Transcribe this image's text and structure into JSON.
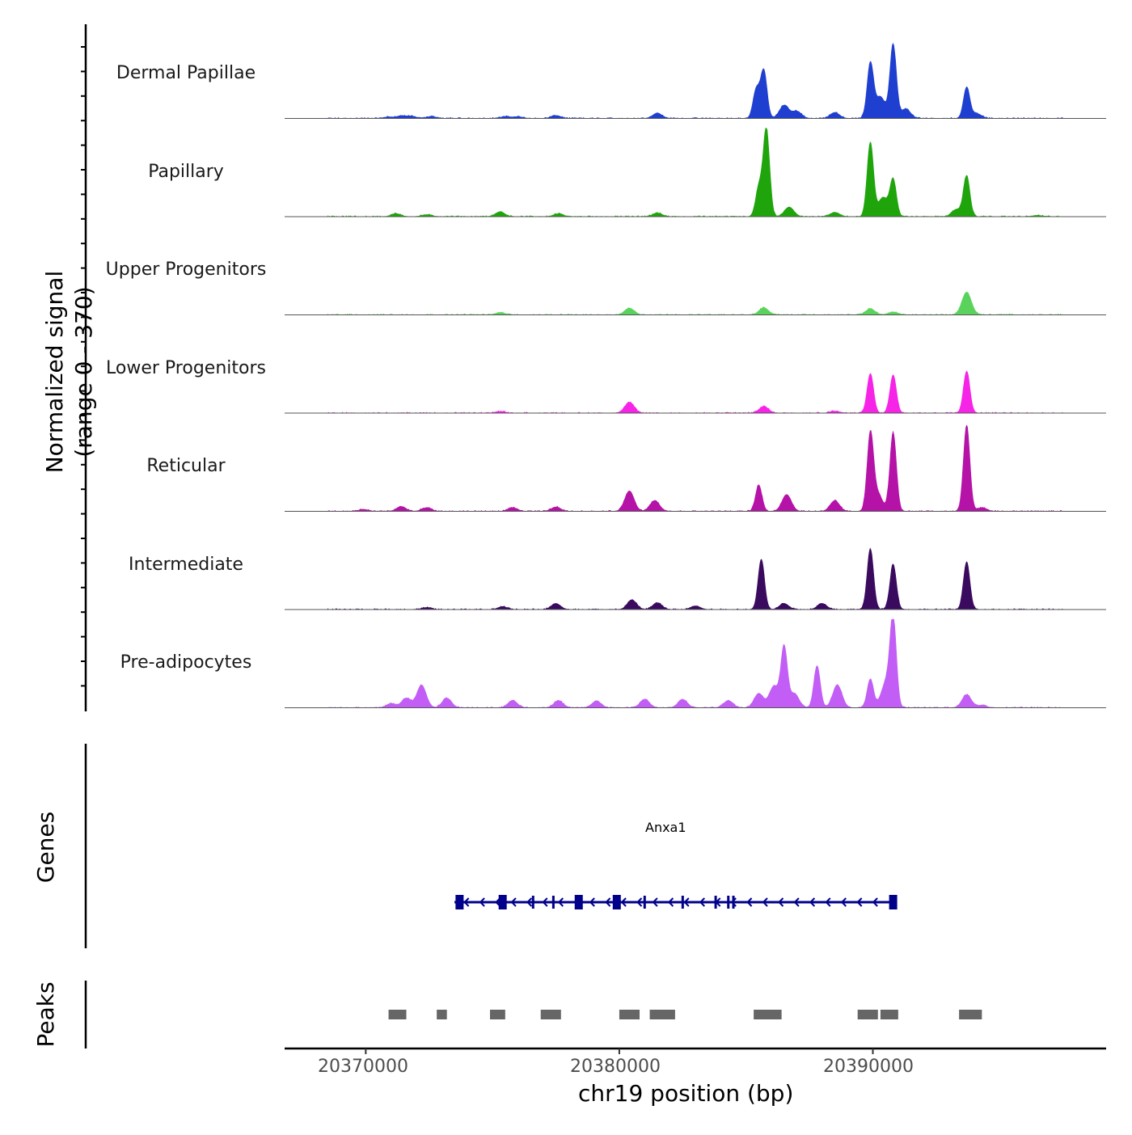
{
  "chart_data": {
    "type": "area",
    "title": "",
    "ylabel_line1": "Normalized signal",
    "ylabel_line2": "(range 0 - 370)",
    "ylim": [
      0,
      370
    ],
    "xlabel": "chr19 position (bp)",
    "xlim": [
      20366800,
      20399200
    ],
    "xticks": [
      20370000,
      20380000,
      20390000
    ],
    "xtick_labels": [
      "20370000",
      "20380000",
      "20390000"
    ],
    "tracks": [
      {
        "name": "Dermal Papillae",
        "color": "#1f3fd0",
        "peaks": [
          {
            "pos": 20370900,
            "val": 6
          },
          {
            "pos": 20371400,
            "val": 10
          },
          {
            "pos": 20371800,
            "val": 9
          },
          {
            "pos": 20372600,
            "val": 8
          },
          {
            "pos": 20375500,
            "val": 8
          },
          {
            "pos": 20376000,
            "val": 7
          },
          {
            "pos": 20377500,
            "val": 12
          },
          {
            "pos": 20381500,
            "val": 22
          },
          {
            "pos": 20385400,
            "val": 120
          },
          {
            "pos": 20385700,
            "val": 200
          },
          {
            "pos": 20386500,
            "val": 55
          },
          {
            "pos": 20387000,
            "val": 30
          },
          {
            "pos": 20388500,
            "val": 25
          },
          {
            "pos": 20389900,
            "val": 230
          },
          {
            "pos": 20390300,
            "val": 90
          },
          {
            "pos": 20390800,
            "val": 310
          },
          {
            "pos": 20391300,
            "val": 40
          },
          {
            "pos": 20393700,
            "val": 130
          },
          {
            "pos": 20394100,
            "val": 20
          }
        ]
      },
      {
        "name": "Papillary",
        "color": "#1fa40c",
        "peaks": [
          {
            "pos": 20371200,
            "val": 12
          },
          {
            "pos": 20372400,
            "val": 8
          },
          {
            "pos": 20375300,
            "val": 20
          },
          {
            "pos": 20377600,
            "val": 12
          },
          {
            "pos": 20381500,
            "val": 15
          },
          {
            "pos": 20385500,
            "val": 120
          },
          {
            "pos": 20385800,
            "val": 370
          },
          {
            "pos": 20386700,
            "val": 40
          },
          {
            "pos": 20388500,
            "val": 18
          },
          {
            "pos": 20389900,
            "val": 310
          },
          {
            "pos": 20390400,
            "val": 80
          },
          {
            "pos": 20390800,
            "val": 155
          },
          {
            "pos": 20393700,
            "val": 170
          },
          {
            "pos": 20393300,
            "val": 30
          },
          {
            "pos": 20396500,
            "val": 5
          }
        ]
      },
      {
        "name": "Upper Progenitors",
        "color": "#5ad35c",
        "peaks": [
          {
            "pos": 20375300,
            "val": 10
          },
          {
            "pos": 20380400,
            "val": 28
          },
          {
            "pos": 20385700,
            "val": 30
          },
          {
            "pos": 20389900,
            "val": 25
          },
          {
            "pos": 20390800,
            "val": 12
          },
          {
            "pos": 20393700,
            "val": 95
          }
        ]
      },
      {
        "name": "Lower Progenitors",
        "color": "#f524e6",
        "peaks": [
          {
            "pos": 20375300,
            "val": 6
          },
          {
            "pos": 20380400,
            "val": 45
          },
          {
            "pos": 20385700,
            "val": 28
          },
          {
            "pos": 20388500,
            "val": 8
          },
          {
            "pos": 20389900,
            "val": 165
          },
          {
            "pos": 20390800,
            "val": 160
          },
          {
            "pos": 20393700,
            "val": 175
          }
        ]
      },
      {
        "name": "Reticular",
        "color": "#b512a8",
        "peaks": [
          {
            "pos": 20369900,
            "val": 8
          },
          {
            "pos": 20371400,
            "val": 20
          },
          {
            "pos": 20372400,
            "val": 15
          },
          {
            "pos": 20375800,
            "val": 15
          },
          {
            "pos": 20377500,
            "val": 18
          },
          {
            "pos": 20380400,
            "val": 85
          },
          {
            "pos": 20381400,
            "val": 45
          },
          {
            "pos": 20385500,
            "val": 110
          },
          {
            "pos": 20386600,
            "val": 70
          },
          {
            "pos": 20388500,
            "val": 45
          },
          {
            "pos": 20389900,
            "val": 320
          },
          {
            "pos": 20390200,
            "val": 70
          },
          {
            "pos": 20390800,
            "val": 330
          },
          {
            "pos": 20393700,
            "val": 360
          },
          {
            "pos": 20394300,
            "val": 15
          }
        ]
      },
      {
        "name": "Intermediate",
        "color": "#3a0a5e",
        "peaks": [
          {
            "pos": 20372400,
            "val": 8
          },
          {
            "pos": 20375400,
            "val": 12
          },
          {
            "pos": 20377500,
            "val": 25
          },
          {
            "pos": 20380500,
            "val": 40
          },
          {
            "pos": 20381500,
            "val": 28
          },
          {
            "pos": 20383000,
            "val": 15
          },
          {
            "pos": 20385600,
            "val": 210
          },
          {
            "pos": 20386500,
            "val": 25
          },
          {
            "pos": 20388000,
            "val": 25
          },
          {
            "pos": 20389900,
            "val": 255
          },
          {
            "pos": 20390800,
            "val": 190
          },
          {
            "pos": 20393700,
            "val": 200
          }
        ]
      },
      {
        "name": "Pre-adipocytes",
        "color": "#c25ef5",
        "peaks": [
          {
            "pos": 20371000,
            "val": 18
          },
          {
            "pos": 20371600,
            "val": 40
          },
          {
            "pos": 20372200,
            "val": 95
          },
          {
            "pos": 20373200,
            "val": 40
          },
          {
            "pos": 20375800,
            "val": 30
          },
          {
            "pos": 20377600,
            "val": 30
          },
          {
            "pos": 20379100,
            "val": 28
          },
          {
            "pos": 20381000,
            "val": 35
          },
          {
            "pos": 20382500,
            "val": 35
          },
          {
            "pos": 20384300,
            "val": 30
          },
          {
            "pos": 20385500,
            "val": 60
          },
          {
            "pos": 20386100,
            "val": 90
          },
          {
            "pos": 20386500,
            "val": 250
          },
          {
            "pos": 20386900,
            "val": 60
          },
          {
            "pos": 20387800,
            "val": 175
          },
          {
            "pos": 20388600,
            "val": 95
          },
          {
            "pos": 20389900,
            "val": 120
          },
          {
            "pos": 20390500,
            "val": 100
          },
          {
            "pos": 20390800,
            "val": 370
          },
          {
            "pos": 20393700,
            "val": 55
          },
          {
            "pos": 20394300,
            "val": 10
          }
        ]
      }
    ],
    "genes": [
      {
        "name": "Anxa1",
        "start": 20373500,
        "end": 20390800,
        "strand": "-",
        "color": "#00008b",
        "exons": [
          20373700,
          20375400,
          20378400,
          20379900,
          20390800
        ],
        "thin_exons": [
          20376600,
          20377400,
          20381000,
          20382500,
          20383800,
          20384300,
          20384500
        ]
      }
    ],
    "genes_label": "Genes",
    "peaks_label": "Peaks",
    "peak_regions": [
      [
        20370900,
        20371600
      ],
      [
        20372800,
        20373200
      ],
      [
        20374900,
        20375500
      ],
      [
        20376900,
        20377700
      ],
      [
        20380000,
        20380800
      ],
      [
        20381200,
        20382200
      ],
      [
        20385300,
        20386400
      ],
      [
        20389400,
        20390200
      ],
      [
        20390300,
        20391000
      ],
      [
        20393400,
        20394300
      ]
    ],
    "peak_color": "#666666"
  }
}
